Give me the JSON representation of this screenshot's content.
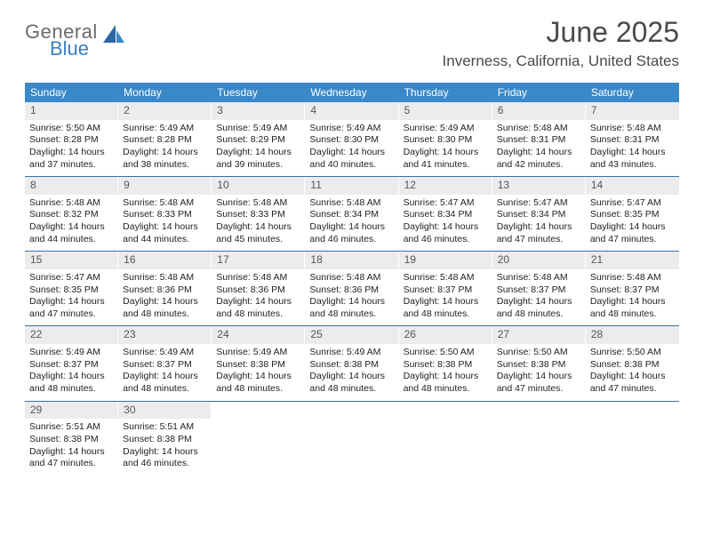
{
  "logo": {
    "word1": "General",
    "word2": "Blue"
  },
  "title": "June 2025",
  "location": "Inverness, California, United States",
  "colors": {
    "header_bg": "#3a88c8",
    "header_text": "#ffffff",
    "rule": "#3a6fa8",
    "daynum_bg": "#ececec",
    "logo_blue": "#3a7fbf",
    "logo_gray": "#6b6b6b"
  },
  "day_names": [
    "Sunday",
    "Monday",
    "Tuesday",
    "Wednesday",
    "Thursday",
    "Friday",
    "Saturday"
  ],
  "weeks": [
    [
      {
        "n": "1",
        "sr": "5:50 AM",
        "ss": "8:28 PM",
        "dl": "14 hours and 37 minutes."
      },
      {
        "n": "2",
        "sr": "5:49 AM",
        "ss": "8:28 PM",
        "dl": "14 hours and 38 minutes."
      },
      {
        "n": "3",
        "sr": "5:49 AM",
        "ss": "8:29 PM",
        "dl": "14 hours and 39 minutes."
      },
      {
        "n": "4",
        "sr": "5:49 AM",
        "ss": "8:30 PM",
        "dl": "14 hours and 40 minutes."
      },
      {
        "n": "5",
        "sr": "5:49 AM",
        "ss": "8:30 PM",
        "dl": "14 hours and 41 minutes."
      },
      {
        "n": "6",
        "sr": "5:48 AM",
        "ss": "8:31 PM",
        "dl": "14 hours and 42 minutes."
      },
      {
        "n": "7",
        "sr": "5:48 AM",
        "ss": "8:31 PM",
        "dl": "14 hours and 43 minutes."
      }
    ],
    [
      {
        "n": "8",
        "sr": "5:48 AM",
        "ss": "8:32 PM",
        "dl": "14 hours and 44 minutes."
      },
      {
        "n": "9",
        "sr": "5:48 AM",
        "ss": "8:33 PM",
        "dl": "14 hours and 44 minutes."
      },
      {
        "n": "10",
        "sr": "5:48 AM",
        "ss": "8:33 PM",
        "dl": "14 hours and 45 minutes."
      },
      {
        "n": "11",
        "sr": "5:48 AM",
        "ss": "8:34 PM",
        "dl": "14 hours and 46 minutes."
      },
      {
        "n": "12",
        "sr": "5:47 AM",
        "ss": "8:34 PM",
        "dl": "14 hours and 46 minutes."
      },
      {
        "n": "13",
        "sr": "5:47 AM",
        "ss": "8:34 PM",
        "dl": "14 hours and 47 minutes."
      },
      {
        "n": "14",
        "sr": "5:47 AM",
        "ss": "8:35 PM",
        "dl": "14 hours and 47 minutes."
      }
    ],
    [
      {
        "n": "15",
        "sr": "5:47 AM",
        "ss": "8:35 PM",
        "dl": "14 hours and 47 minutes."
      },
      {
        "n": "16",
        "sr": "5:48 AM",
        "ss": "8:36 PM",
        "dl": "14 hours and 48 minutes."
      },
      {
        "n": "17",
        "sr": "5:48 AM",
        "ss": "8:36 PM",
        "dl": "14 hours and 48 minutes."
      },
      {
        "n": "18",
        "sr": "5:48 AM",
        "ss": "8:36 PM",
        "dl": "14 hours and 48 minutes."
      },
      {
        "n": "19",
        "sr": "5:48 AM",
        "ss": "8:37 PM",
        "dl": "14 hours and 48 minutes."
      },
      {
        "n": "20",
        "sr": "5:48 AM",
        "ss": "8:37 PM",
        "dl": "14 hours and 48 minutes."
      },
      {
        "n": "21",
        "sr": "5:48 AM",
        "ss": "8:37 PM",
        "dl": "14 hours and 48 minutes."
      }
    ],
    [
      {
        "n": "22",
        "sr": "5:49 AM",
        "ss": "8:37 PM",
        "dl": "14 hours and 48 minutes."
      },
      {
        "n": "23",
        "sr": "5:49 AM",
        "ss": "8:37 PM",
        "dl": "14 hours and 48 minutes."
      },
      {
        "n": "24",
        "sr": "5:49 AM",
        "ss": "8:38 PM",
        "dl": "14 hours and 48 minutes."
      },
      {
        "n": "25",
        "sr": "5:49 AM",
        "ss": "8:38 PM",
        "dl": "14 hours and 48 minutes."
      },
      {
        "n": "26",
        "sr": "5:50 AM",
        "ss": "8:38 PM",
        "dl": "14 hours and 48 minutes."
      },
      {
        "n": "27",
        "sr": "5:50 AM",
        "ss": "8:38 PM",
        "dl": "14 hours and 47 minutes."
      },
      {
        "n": "28",
        "sr": "5:50 AM",
        "ss": "8:38 PM",
        "dl": "14 hours and 47 minutes."
      }
    ],
    [
      {
        "n": "29",
        "sr": "5:51 AM",
        "ss": "8:38 PM",
        "dl": "14 hours and 47 minutes."
      },
      {
        "n": "30",
        "sr": "5:51 AM",
        "ss": "8:38 PM",
        "dl": "14 hours and 46 minutes."
      },
      null,
      null,
      null,
      null,
      null
    ]
  ],
  "labels": {
    "sunrise": "Sunrise:",
    "sunset": "Sunset:",
    "daylight": "Daylight:"
  }
}
